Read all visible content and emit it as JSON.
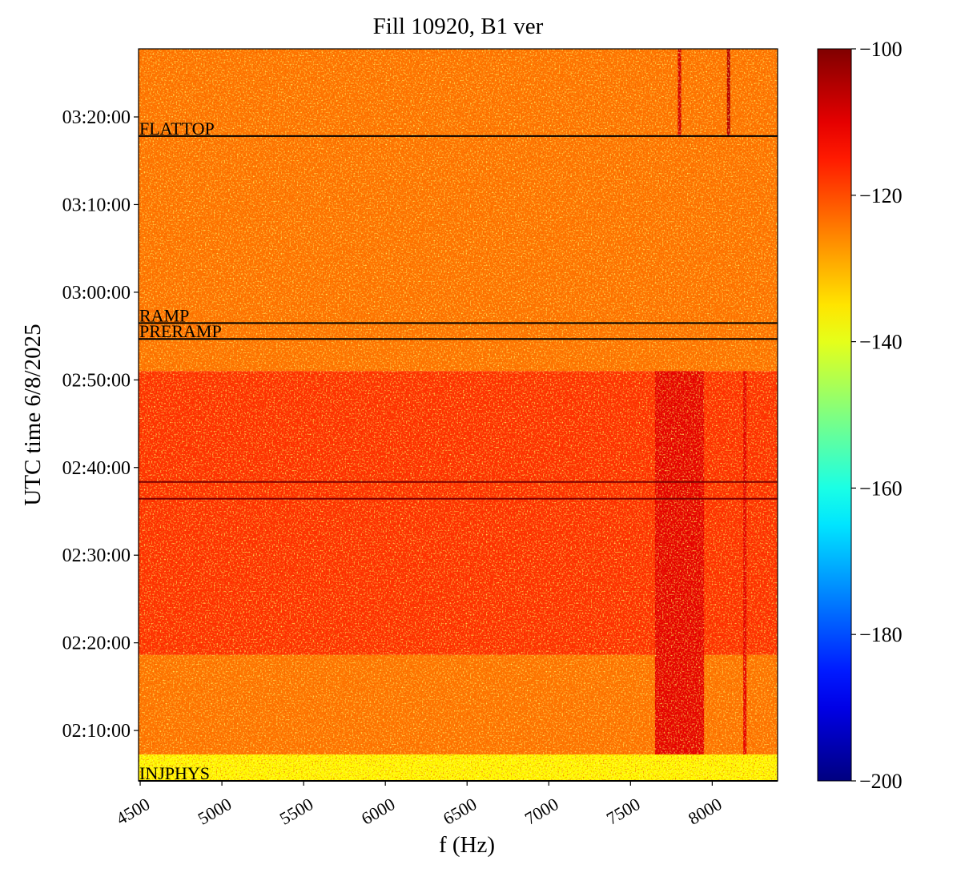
{
  "chart_data": {
    "type": "spectrogram",
    "title": "Fill 10920, B1 ver",
    "x_label": "f (Hz)",
    "y_label": "UTC time 6/8/2025",
    "xlim": [
      4490,
      8400
    ],
    "xticks": [
      4500,
      5000,
      5500,
      6000,
      6500,
      7000,
      7500,
      8000
    ],
    "ylim": [
      7455,
      12466
    ],
    "yticks": [
      {
        "value": 7800,
        "label": "02:10:00"
      },
      {
        "value": 8400,
        "label": "02:20:00"
      },
      {
        "value": 9000,
        "label": "02:30:00"
      },
      {
        "value": 9600,
        "label": "02:40:00"
      },
      {
        "value": 10200,
        "label": "02:50:00"
      },
      {
        "value": 10800,
        "label": "03:00:00"
      },
      {
        "value": 11400,
        "label": "03:10:00"
      },
      {
        "value": 12000,
        "label": "03:20:00"
      }
    ],
    "colormap": "jet",
    "clim": [
      -200,
      -100
    ],
    "cticks": [
      {
        "value": -100,
        "label": "−100"
      },
      {
        "value": -120,
        "label": "−120"
      },
      {
        "value": -140,
        "label": "−140"
      },
      {
        "value": -160,
        "label": "−160"
      },
      {
        "value": -180,
        "label": "−180"
      },
      {
        "value": -200,
        "label": "−200"
      }
    ],
    "cells": [
      {
        "f": [
          4490,
          8400
        ],
        "t": [
          7455,
          7636
        ],
        "value": -137
      },
      {
        "f": [
          4490,
          8400
        ],
        "t": [
          7636,
          8318
        ],
        "value": -124
      },
      {
        "f": [
          4490,
          8400
        ],
        "t": [
          8318,
          10260
        ],
        "value": -117
      },
      {
        "f": [
          4490,
          8400
        ],
        "t": [
          10260,
          12466
        ],
        "value": -124
      },
      {
        "f": [
          7650,
          7950
        ],
        "t": [
          7636,
          10260
        ],
        "value": -110
      },
      {
        "f": [
          8190,
          8210
        ],
        "t": [
          7636,
          10260
        ],
        "value": -110
      },
      {
        "f": [
          7790,
          7810
        ],
        "t": [
          11869,
          12466
        ],
        "value": -108
      },
      {
        "f": [
          8090,
          8110
        ],
        "t": [
          11869,
          12466
        ],
        "value": -105
      }
    ],
    "events": [
      {
        "time": 11869,
        "label": "FLATTOP",
        "color": "#000000"
      },
      {
        "time": 10589,
        "label": "RAMP",
        "color": "#000000"
      },
      {
        "time": 10480,
        "label": "PRERAMP",
        "color": "#000000"
      },
      {
        "time": 9501,
        "label": null,
        "color": "#7a0000"
      },
      {
        "time": 9386,
        "label": null,
        "color": "#7a0000"
      },
      {
        "time": 7455,
        "label": "INJPHYS",
        "color": "#000000"
      }
    ]
  }
}
